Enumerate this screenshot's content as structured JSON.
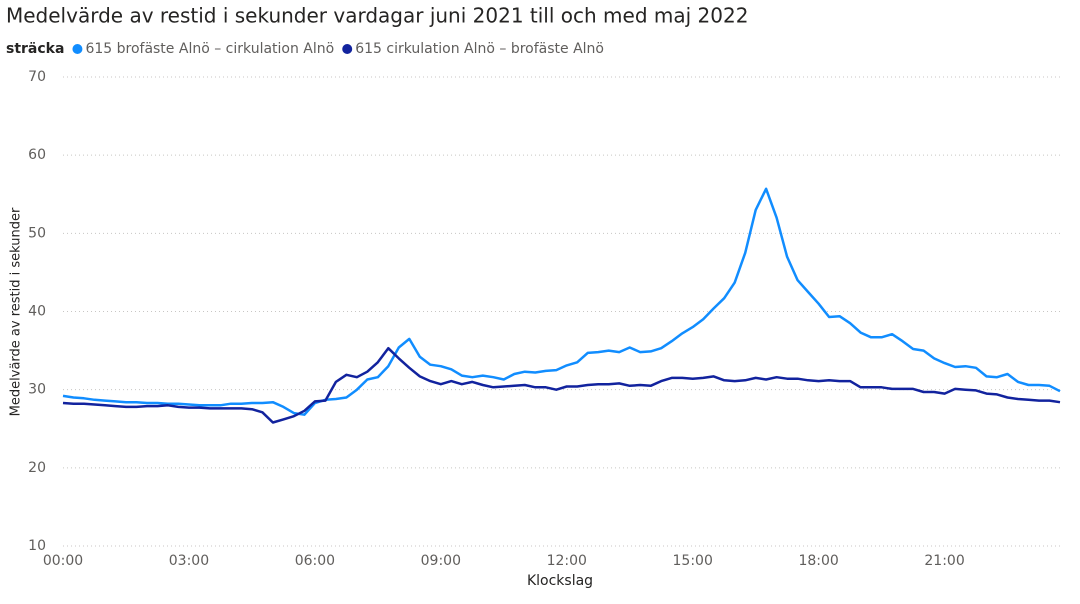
{
  "chart_data": {
    "type": "line",
    "title": "Medelvärde av restid i sekunder vardagar juni 2021 till och med maj 2022",
    "legend_title": "sträcka",
    "x_label": "Klockslag",
    "y_label": "Medelvärde av restid i sekunder",
    "x": [
      0,
      0.25,
      0.5,
      0.75,
      1,
      1.25,
      1.5,
      1.75,
      2,
      2.25,
      2.5,
      2.75,
      3,
      3.25,
      3.5,
      3.75,
      4,
      4.25,
      4.5,
      4.75,
      5,
      5.25,
      5.5,
      5.75,
      6,
      6.25,
      6.5,
      6.75,
      7,
      7.25,
      7.5,
      7.75,
      8,
      8.25,
      8.5,
      8.75,
      9,
      9.25,
      9.5,
      9.75,
      10,
      10.25,
      10.5,
      10.75,
      11,
      11.25,
      11.5,
      11.75,
      12,
      12.25,
      12.5,
      12.75,
      13,
      13.25,
      13.5,
      13.75,
      14,
      14.25,
      14.5,
      14.75,
      15,
      15.25,
      15.5,
      15.75,
      16,
      16.25,
      16.5,
      16.75,
      17,
      17.25,
      17.5,
      17.75,
      18,
      18.25,
      18.5,
      18.75,
      19,
      19.25,
      19.5,
      19.75,
      20,
      20.25,
      20.5,
      20.75,
      21,
      21.25,
      21.5,
      21.75,
      22,
      22.25,
      22.5,
      22.75,
      23,
      23.25,
      23.5,
      23.75
    ],
    "series": [
      {
        "name": "615 brofäste Alnö – cirkulation Alnö",
        "color": "#118dff",
        "values": [
          29.2,
          29.0,
          28.9,
          28.7,
          28.6,
          28.5,
          28.4,
          28.4,
          28.3,
          28.3,
          28.2,
          28.2,
          28.1,
          28.0,
          28.0,
          28.0,
          28.2,
          28.2,
          28.3,
          28.3,
          28.4,
          27.8,
          27.0,
          26.8,
          28.3,
          28.7,
          28.8,
          29.0,
          30.0,
          31.3,
          31.6,
          33.0,
          35.4,
          36.5,
          34.2,
          33.2,
          33.0,
          32.6,
          31.8,
          31.6,
          31.8,
          31.6,
          31.3,
          32.0,
          32.3,
          32.2,
          32.4,
          32.5,
          33.1,
          33.5,
          34.7,
          34.8,
          35.0,
          34.8,
          35.4,
          34.8,
          34.9,
          35.3,
          36.2,
          37.2,
          38.0,
          39.0,
          40.4,
          41.7,
          43.7,
          47.5,
          53.0,
          55.7,
          52.0,
          47.0,
          44.0,
          42.5,
          41.0,
          39.3,
          39.4,
          38.5,
          37.3,
          36.7,
          36.7,
          37.1,
          36.2,
          35.2,
          35.0,
          34.0,
          33.4,
          32.9,
          33.0,
          32.8,
          31.7,
          31.6,
          32.0,
          31.0,
          30.6,
          30.6,
          30.5,
          29.8
        ]
      },
      {
        "name": "615 cirkulation Alnö – brofäste Alnö",
        "color": "#12239e",
        "values": [
          28.3,
          28.2,
          28.2,
          28.1,
          28.0,
          27.9,
          27.8,
          27.8,
          27.9,
          27.9,
          28.0,
          27.8,
          27.7,
          27.7,
          27.6,
          27.6,
          27.6,
          27.6,
          27.5,
          27.1,
          25.8,
          26.2,
          26.6,
          27.3,
          28.5,
          28.6,
          31.0,
          31.9,
          31.6,
          32.3,
          33.5,
          35.3,
          34.0,
          32.8,
          31.7,
          31.1,
          30.7,
          31.1,
          30.7,
          31.0,
          30.6,
          30.3,
          30.4,
          30.5,
          30.6,
          30.3,
          30.3,
          30.0,
          30.4,
          30.4,
          30.6,
          30.7,
          30.7,
          30.8,
          30.5,
          30.6,
          30.5,
          31.1,
          31.5,
          31.5,
          31.4,
          31.5,
          31.7,
          31.2,
          31.1,
          31.2,
          31.5,
          31.3,
          31.6,
          31.4,
          31.4,
          31.2,
          31.1,
          31.2,
          31.1,
          31.1,
          30.3,
          30.3,
          30.3,
          30.1,
          30.1,
          30.1,
          29.7,
          29.7,
          29.5,
          30.1,
          30.0,
          29.9,
          29.5,
          29.4,
          29.0,
          28.8,
          28.7,
          28.6,
          28.6,
          28.4
        ]
      }
    ],
    "xlim": [
      0,
      23.75
    ],
    "xticks": [
      {
        "value": 0,
        "label": "00:00"
      },
      {
        "value": 3,
        "label": "03:00"
      },
      {
        "value": 6,
        "label": "06:00"
      },
      {
        "value": 9,
        "label": "09:00"
      },
      {
        "value": 12,
        "label": "12:00"
      },
      {
        "value": 15,
        "label": "15:00"
      },
      {
        "value": 18,
        "label": "18:00"
      },
      {
        "value": 21,
        "label": "21:00"
      }
    ],
    "ylim": [
      10,
      70
    ],
    "yticks": [
      10,
      20,
      30,
      40,
      50,
      60,
      70
    ],
    "grid": true
  }
}
